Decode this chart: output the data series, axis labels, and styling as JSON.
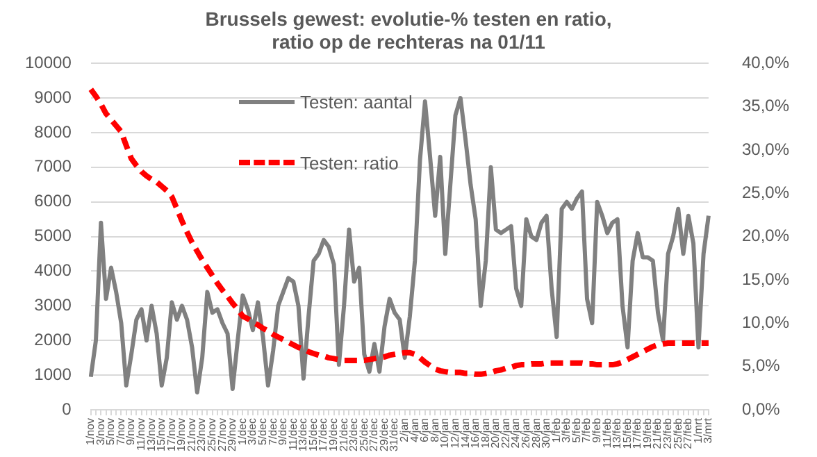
{
  "chart_data": {
    "type": "line",
    "title": "Brussels gewest: evolutie-% testen en ratio,\nratio op de rechteras na 01/11",
    "categories": [
      "1/nov",
      null,
      "3/nov",
      null,
      "5/nov",
      null,
      "7/nov",
      null,
      "9/nov",
      null,
      "11/nov",
      null,
      "13/nov",
      null,
      "15/nov",
      null,
      "17/nov",
      null,
      "19/nov",
      null,
      "21/nov",
      null,
      "23/nov",
      null,
      "25/nov",
      null,
      "27/nov",
      null,
      "29/nov",
      null,
      "1/dec",
      null,
      "3/dec",
      null,
      "5/dec",
      null,
      "7/dec",
      null,
      "9/dec",
      null,
      "11/dec",
      null,
      "13/dec",
      null,
      "15/dec",
      null,
      "17/dec",
      null,
      "19/dec",
      null,
      "21/dec",
      null,
      "23/dec",
      null,
      "25/dec",
      null,
      "27/dec",
      null,
      "29/dec",
      null,
      "31/dec",
      null,
      "2/jan",
      null,
      "4/jan",
      null,
      "6/jan",
      null,
      "8/jan",
      null,
      "10/jan",
      null,
      "12/jan",
      null,
      "14/jan",
      null,
      "16/jan",
      null,
      "18/jan",
      null,
      "20/jan",
      null,
      "22/jan",
      null,
      "24/jan",
      null,
      "26/jan",
      null,
      "28/jan",
      null,
      "30/jan",
      null,
      "1/feb",
      null,
      "3/feb",
      null,
      "5/feb",
      null,
      "7/feb",
      null,
      "9/feb",
      null,
      "11/feb",
      null,
      "13/feb",
      null,
      "15/feb",
      null,
      "17/feb",
      null,
      "19/feb",
      null,
      "21/feb",
      null,
      "23/feb",
      null,
      "25/feb",
      null,
      "27/feb",
      null,
      "1/mrt",
      null,
      "3/mrt"
    ],
    "series": [
      {
        "name": "Testen: aantal",
        "color": "#808080",
        "values": [
          950,
          2000,
          5400,
          3200,
          4100,
          3400,
          2500,
          700,
          1600,
          2600,
          2900,
          2000,
          3000,
          2200,
          700,
          1500,
          3100,
          2600,
          3000,
          2600,
          1800,
          500,
          1500,
          3400,
          2800,
          2900,
          2500,
          2200,
          600,
          2000,
          3300,
          2900,
          2300,
          3100,
          2100,
          700,
          1700,
          3000,
          3400,
          3800,
          3700,
          3000,
          900,
          2700,
          4300,
          4500,
          4900,
          4700,
          4200,
          1300,
          3000,
          5200,
          3700,
          4100,
          1600,
          1100,
          1900,
          1100,
          2400,
          3200,
          2800,
          2600,
          1500,
          2700,
          4300,
          7200,
          8900,
          7300,
          5600,
          7300,
          4500,
          6500,
          8500,
          9000,
          7800,
          6500,
          5500,
          3000,
          4300,
          7000,
          5200,
          5100,
          5200,
          5300,
          3500,
          3000,
          5500,
          5000,
          4900,
          5400,
          5600,
          3500,
          2100,
          5800,
          6000,
          5800,
          6100,
          6300,
          3200,
          2500,
          6000,
          5600,
          5100,
          5400,
          5500,
          3000,
          1800,
          4300,
          5100,
          4400,
          4400,
          4300,
          2800,
          2000,
          4500,
          5000,
          5800,
          4500,
          5600,
          4800,
          1800,
          4500,
          5600
        ]
      },
      {
        "name": "Testen: ratio",
        "color": "#ff0000",
        "axis": "y2",
        "line_style": "dashed",
        "values": [
          37.0,
          36.2,
          35.3,
          34.2,
          33.5,
          32.8,
          32.1,
          30.5,
          29.0,
          28.2,
          27.5,
          27.0,
          26.6,
          26.3,
          25.8,
          25.3,
          24.6,
          23.2,
          21.8,
          20.5,
          19.3,
          18.3,
          17.3,
          16.4,
          15.5,
          14.6,
          13.8,
          13.1,
          12.3,
          11.6,
          10.8,
          10.5,
          10.1,
          9.8,
          9.4,
          9.1,
          8.7,
          8.4,
          8.1,
          7.8,
          7.5,
          7.2,
          7.0,
          6.7,
          6.5,
          6.3,
          6.2,
          6.0,
          5.9,
          5.8,
          5.7,
          5.7,
          5.7,
          5.7,
          5.7,
          5.8,
          5.9,
          6.0,
          6.1,
          6.3,
          6.4,
          6.5,
          6.6,
          6.6,
          6.4,
          6.0,
          5.5,
          5.1,
          4.7,
          4.5,
          4.4,
          4.3,
          4.3,
          4.3,
          4.2,
          4.2,
          4.1,
          4.1,
          4.2,
          4.3,
          4.5,
          4.6,
          4.8,
          4.9,
          5.1,
          5.2,
          5.2,
          5.3,
          5.3,
          5.3,
          5.4,
          5.4,
          5.4,
          5.4,
          5.4,
          5.4,
          5.4,
          5.4,
          5.3,
          5.3,
          5.2,
          5.2,
          5.2,
          5.2,
          5.3,
          5.5,
          5.8,
          6.1,
          6.4,
          6.7,
          7.0,
          7.3,
          7.5,
          7.6,
          7.7,
          7.7,
          7.7,
          7.7,
          7.7,
          7.7,
          7.7,
          7.7,
          7.7
        ]
      }
    ],
    "ylim": [
      0,
      10000
    ],
    "yticks": [
      0,
      1000,
      2000,
      3000,
      4000,
      5000,
      6000,
      7000,
      8000,
      9000,
      10000
    ],
    "y2lim": [
      0,
      40
    ],
    "y2ticks": [
      {
        "value": 0,
        "label": "0,0%"
      },
      {
        "value": 5,
        "label": "5,0%"
      },
      {
        "value": 10,
        "label": "10,0%"
      },
      {
        "value": 15,
        "label": "15,0%"
      },
      {
        "value": 20,
        "label": "20,0%"
      },
      {
        "value": 25,
        "label": "25,0%"
      },
      {
        "value": 30,
        "label": "30,0%"
      },
      {
        "value": 35,
        "label": "35,0%"
      },
      {
        "value": 40,
        "label": "40,0%"
      }
    ],
    "grid": "y",
    "legend": "top left",
    "marker": "none"
  }
}
